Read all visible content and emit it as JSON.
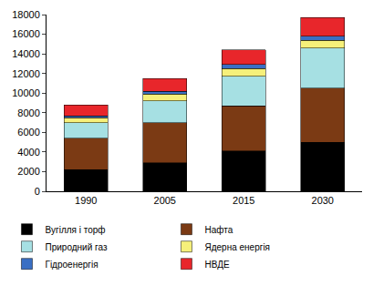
{
  "chart_data": {
    "type": "bar",
    "stacked": true,
    "categories": [
      "1990",
      "2005",
      "2015",
      "2030"
    ],
    "series": [
      {
        "name": "Вугілля і торф",
        "color": "#000000",
        "values": [
          2200,
          2900,
          4100,
          5000
        ]
      },
      {
        "name": "Нафта",
        "color": "#7b3a14",
        "values": [
          3200,
          4100,
          4600,
          5500
        ]
      },
      {
        "name": "Природний газ",
        "color": "#a6e0e3",
        "values": [
          1600,
          2200,
          3000,
          4100
        ]
      },
      {
        "name": "Ядерна енергія",
        "color": "#f6f07a",
        "values": [
          500,
          700,
          800,
          800
        ]
      },
      {
        "name": "Гідроенергія",
        "color": "#3a6fc4",
        "values": [
          200,
          300,
          400,
          400
        ]
      },
      {
        "name": "НВДЕ",
        "color": "#e8262b",
        "values": [
          1100,
          1300,
          1500,
          1900
        ]
      }
    ],
    "ylim": [
      0,
      18000
    ],
    "yticks": [
      0,
      2000,
      4000,
      6000,
      8000,
      10000,
      12000,
      14000,
      16000,
      18000
    ],
    "grid": false,
    "legend": "bottom"
  }
}
